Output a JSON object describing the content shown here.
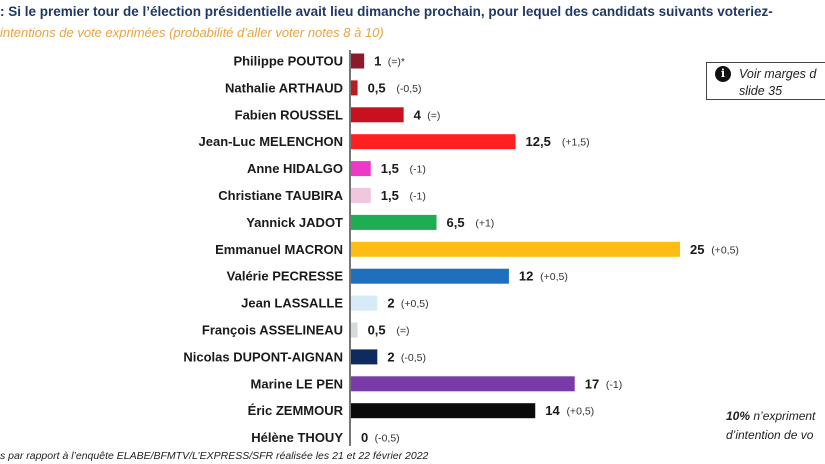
{
  "header": {
    "question": ": Si le premier tour de l’élection présidentielle avait lieu dimanche prochain, pour lequel des candidats suivants voteriez-",
    "subtitle": "intentions de vote exprimées (probabilité d’aller voter notes 8 à 10)"
  },
  "note_box": {
    "icon": "info-icon",
    "icon_glyph": "i",
    "text": "Voir marges d\nslide 35"
  },
  "side_note": {
    "percent": "10%",
    "line1": " n’expriment",
    "line2": "d’intention de vo"
  },
  "footer": "s par rapport à l’enquête ELABE/BFMTV/L’EXPRESS/SFR réalisée les 21 et 22 février 2022",
  "chart_data": {
    "type": "bar",
    "orientation": "horizontal",
    "categories": [
      "Philippe POUTOU",
      "Nathalie ARTHAUD",
      "Fabien ROUSSEL",
      "Jean-Luc MELENCHON",
      "Anne HIDALGO",
      "Christiane TAUBIRA",
      "Yannick JADOT",
      "Emmanuel MACRON",
      "Valérie PECRESSE",
      "Jean LASSALLE",
      "François ASSELINEAU",
      "Nicolas DUPONT-AIGNAN",
      "Marine LE PEN",
      "Éric ZEMMOUR",
      "Hélène THOUY"
    ],
    "values": [
      1,
      0.5,
      4,
      12.5,
      1.5,
      1.5,
      6.5,
      25,
      12,
      2,
      0.5,
      2,
      17,
      14,
      0
    ],
    "value_labels": [
      "1",
      "0,5",
      "4",
      "12,5",
      "1,5",
      "1,5",
      "6,5",
      "25",
      "12",
      "2",
      "0,5",
      "2",
      "17",
      "14",
      "0"
    ],
    "changes": [
      "(=)*",
      "(-0,5)",
      "(=)",
      "(+1,5)",
      "(-1)",
      "(-1)",
      "(+1)",
      "(+0,5)",
      "(+0,5)",
      "(+0,5)",
      "(=)",
      "(-0,5)",
      "(-1)",
      "(+0,5)",
      "(-0,5)"
    ],
    "colors": [
      "#8b1a2b",
      "#b81c1c",
      "#c8101e",
      "#ff1f1f",
      "#f038c8",
      "#f1c6df",
      "#1fad53",
      "#fdbd13",
      "#1f6fbf",
      "#d6ebf5",
      "#d3dcd6",
      "#0e2a5e",
      "#7a3aa8",
      "#0a0a0a",
      "#ffffff"
    ],
    "xlim": [
      0,
      25
    ],
    "grid": false,
    "legend": "none"
  }
}
